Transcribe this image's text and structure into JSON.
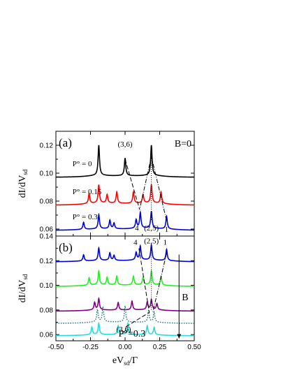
{
  "chart_data": [
    {
      "type": "line",
      "panel_label": "(a)",
      "field_label": "B=0",
      "xlim": [
        -0.5,
        0.5
      ],
      "ylim": [
        0.055,
        0.13
      ],
      "yticks": [
        0.06,
        0.08,
        0.1,
        0.12
      ],
      "ytick_labels": [
        "0.06",
        "0.08",
        "0.10",
        "0.12"
      ],
      "ylabel": {
        "main": "dI/dV",
        "sub": "sd"
      },
      "series": [
        {
          "name": "P° = 0",
          "color": "#000000",
          "dash": "solid",
          "base": 0.097,
          "peaks": [
            [
              -0.19,
              0.0215
            ],
            [
              0.0,
              0.0125
            ],
            [
              0.19,
              0.0215
            ]
          ]
        },
        {
          "name": "P° = 0.15",
          "color": "#ff0000",
          "dash": "solid",
          "base": 0.077,
          "peaks": [
            [
              -0.26,
              0.007
            ],
            [
              -0.19,
              0.013
            ],
            [
              -0.13,
              0.006
            ],
            [
              -0.06,
              0.008
            ],
            [
              0.06,
              0.008
            ],
            [
              0.13,
              0.006
            ],
            [
              0.19,
              0.013
            ],
            [
              0.26,
              0.008
            ]
          ]
        },
        {
          "name": "P° = 0.3",
          "color": "#0000dd",
          "dash": "solid",
          "base": 0.059,
          "peaks": [
            [
              -0.3,
              0.005
            ],
            [
              -0.19,
              0.01
            ],
            [
              -0.11,
              0.006
            ],
            [
              -0.08,
              0.004
            ],
            [
              0.08,
              0.006
            ],
            [
              0.11,
              0.011
            ],
            [
              0.19,
              0.012
            ],
            [
              0.3,
              0.009
            ]
          ]
        }
      ],
      "annotations": [
        "(3,6)",
        "4",
        "(2,5)",
        "1"
      ]
    },
    {
      "type": "line",
      "panel_label": "(b)",
      "field_label": "B",
      "polarization_label": "P°=0.3",
      "xlim": [
        -0.5,
        0.5
      ],
      "ylim": [
        0.055,
        0.14
      ],
      "xticks": [
        -0.5,
        -0.25,
        0.0,
        0.25,
        0.5
      ],
      "xtick_labels": [
        "-0.50",
        "-0.25",
        "0.00",
        "0.25",
        "0.50"
      ],
      "yticks": [
        0.06,
        0.08,
        0.1,
        0.12,
        0.14
      ],
      "ytick_labels": [
        "0.06",
        "0.08",
        "0.10",
        "0.12",
        "0.14"
      ],
      "ylabel": {
        "main": "dI/dV",
        "sub": "sd"
      },
      "xlabel": {
        "main": "eV",
        "sub": "sd",
        "tail": "/Γ"
      },
      "series": [
        {
          "name": "",
          "color": "#0000dd",
          "dash": "solid",
          "base": 0.119,
          "peaks": [
            [
              -0.3,
              0.005
            ],
            [
              -0.19,
              0.01
            ],
            [
              -0.11,
              0.006
            ],
            [
              -0.08,
              0.004
            ],
            [
              0.08,
              0.006
            ],
            [
              0.11,
              0.011
            ],
            [
              0.19,
              0.012
            ],
            [
              0.3,
              0.009
            ]
          ]
        },
        {
          "name": "",
          "color": "#22ee22",
          "dash": "solid",
          "base": 0.099,
          "peaks": [
            [
              -0.26,
              0.006
            ],
            [
              -0.19,
              0.011
            ],
            [
              -0.13,
              0.006
            ],
            [
              -0.06,
              0.007
            ],
            [
              0.06,
              0.007
            ],
            [
              0.13,
              0.006
            ],
            [
              0.19,
              0.011
            ],
            [
              0.26,
              0.007
            ]
          ]
        },
        {
          "name": "",
          "color": "#800080",
          "dash": "solid",
          "base": 0.079,
          "peaks": [
            [
              -0.22,
              0.006
            ],
            [
              -0.19,
              0.009
            ],
            [
              -0.05,
              0.006
            ],
            [
              0.05,
              0.007
            ],
            [
              0.16,
              0.006
            ],
            [
              0.19,
              0.008
            ],
            [
              0.23,
              0.005
            ]
          ]
        },
        {
          "name": "",
          "color": "#227777",
          "dash": "dot",
          "base": 0.069,
          "peaks": [
            [
              -0.2,
              0.01
            ],
            [
              -0.16,
              0.012
            ],
            [
              0.0,
              0.013
            ],
            [
              0.17,
              0.009
            ],
            [
              0.21,
              0.008
            ]
          ]
        },
        {
          "name": "",
          "color": "#22dddd",
          "dash": "solid",
          "base": 0.059,
          "peaks": [
            [
              -0.24,
              0.006
            ],
            [
              -0.19,
              0.009
            ],
            [
              -0.05,
              0.007
            ],
            [
              0.02,
              0.009
            ],
            [
              0.16,
              0.007
            ],
            [
              0.21,
              0.006
            ]
          ]
        }
      ],
      "annotations": [
        "4",
        "(2,5)",
        "1",
        "(3,6)"
      ]
    }
  ]
}
